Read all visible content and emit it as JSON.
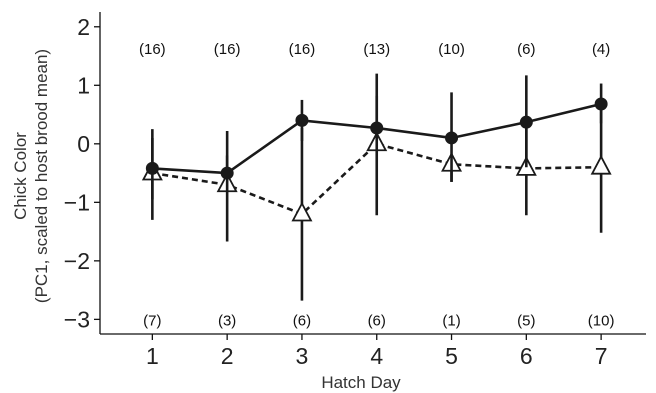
{
  "chart_data": {
    "type": "line",
    "xlabel": "Hatch Day",
    "ylabel_lines": [
      "Chick Color",
      "(PC1, scaled to host brood mean)"
    ],
    "x": [
      1,
      2,
      3,
      4,
      5,
      6,
      7
    ],
    "xlim": [
      0.3,
      7.6
    ],
    "ylim": [
      -3.25,
      2.15
    ],
    "yticks": [
      2,
      1,
      0,
      -1,
      -2,
      -3
    ],
    "grid": false,
    "series": [
      {
        "marker": "filled-circle",
        "line_style": "solid",
        "color": "#1a1a1a",
        "values": [
          -0.42,
          -0.5,
          0.4,
          0.27,
          0.1,
          0.37,
          0.68
        ],
        "error_lower": [
          -0.95,
          -0.8,
          0.05,
          -0.1,
          -0.65,
          -0.4,
          0.35
        ],
        "error_upper": [
          0.1,
          -0.2,
          0.75,
          0.82,
          0.88,
          1.17,
          1.03
        ],
        "counts": [
          "(16)",
          "(16)",
          "(16)",
          "(13)",
          "(10)",
          "(6)",
          "(4)"
        ],
        "count_y": 1.64
      },
      {
        "marker": "open-triangle",
        "line_style": "dashed",
        "color": "#1a1a1a",
        "values": [
          -0.5,
          -0.7,
          -1.2,
          0.0,
          -0.35,
          -0.42,
          -0.4
        ],
        "error_lower": [
          -1.3,
          -1.67,
          -2.68,
          -1.22,
          -0.65,
          -1.22,
          -1.52
        ],
        "error_upper": [
          0.25,
          0.22,
          0.27,
          1.2,
          -0.2,
          0.4,
          0.72
        ],
        "counts": [
          "(7)",
          "(3)",
          "(6)",
          "(6)",
          "(1)",
          "(5)",
          "(10)"
        ],
        "count_y": -3.0
      }
    ]
  }
}
